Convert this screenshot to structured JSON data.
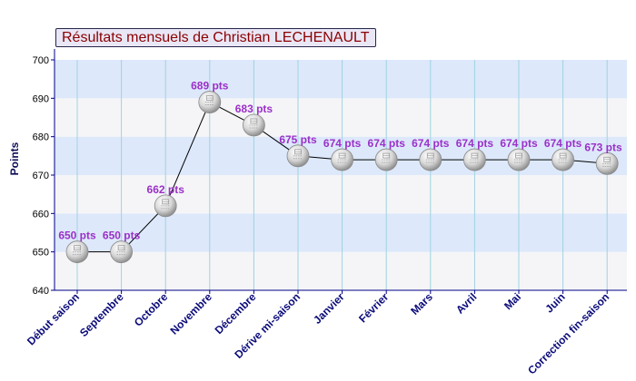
{
  "title": "Résultats mensuels de Christian LECHENAULT",
  "ylabel": "Points",
  "colors": {
    "band_blue": "#dde8fb",
    "band_gray": "#f5f5f7",
    "axis": "#000088",
    "grid": "#9fd3e0",
    "line": "#000000",
    "label": "#9b30c8",
    "xtick": "#0b0b7a"
  },
  "chart_data": {
    "type": "line",
    "title": "Résultats mensuels de Christian LECHENAULT",
    "xlabel": "",
    "ylabel": "Points",
    "ylim": [
      640,
      700
    ],
    "yticks": [
      640,
      650,
      660,
      670,
      680,
      690,
      700
    ],
    "categories": [
      "Début saison",
      "Septembre",
      "Octobre",
      "Novembre",
      "Décembre",
      "Dérive mi-saison",
      "Janvier",
      "Février",
      "Mars",
      "Avril",
      "Mai",
      "Juin",
      "Correction fin-saison"
    ],
    "values": [
      650,
      650,
      662,
      689,
      683,
      675,
      674,
      674,
      674,
      674,
      674,
      674,
      673
    ],
    "data_labels": [
      "650 pts",
      "650 pts",
      "662 pts",
      "689 pts",
      "683 pts",
      "675 pts",
      "674 pts",
      "674 pts",
      "674 pts",
      "674 pts",
      "674 pts",
      "674 pts",
      "673 pts"
    ],
    "grid": true,
    "legend": "none",
    "marker": "ping-pong-ball-icon"
  }
}
